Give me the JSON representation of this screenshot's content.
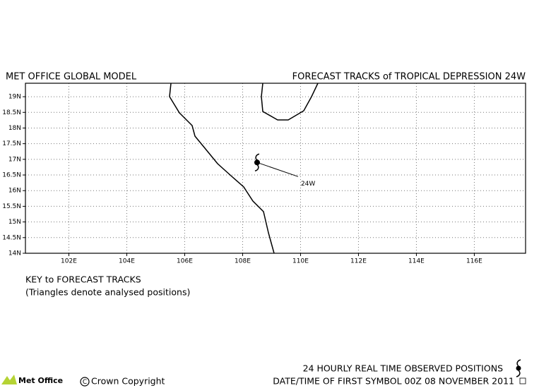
{
  "map": {
    "title_left": "MET OFFICE GLOBAL MODEL",
    "title_right": "FORECAST TRACKS of TROPICAL DEPRESSION 24W",
    "lon_range": [
      100.5,
      117.77
    ],
    "lat_range": [
      14,
      19.43
    ],
    "lon_ticks": [
      {
        "value": 102,
        "label": "102E"
      },
      {
        "value": 104,
        "label": "104E"
      },
      {
        "value": 106,
        "label": "106E"
      },
      {
        "value": 108,
        "label": "108E"
      },
      {
        "value": 110,
        "label": "110E"
      },
      {
        "value": 112,
        "label": "112E"
      },
      {
        "value": 114,
        "label": "114E"
      },
      {
        "value": 116,
        "label": "116E"
      }
    ],
    "lat_ticks": [
      {
        "value": 14,
        "label": "14N"
      },
      {
        "value": 14.5,
        "label": "14.5N"
      },
      {
        "value": 15,
        "label": "15N"
      },
      {
        "value": 15.5,
        "label": "15.5N"
      },
      {
        "value": 16,
        "label": "16N"
      },
      {
        "value": 16.5,
        "label": "16.5N"
      },
      {
        "value": 17,
        "label": "17N"
      },
      {
        "value": 17.5,
        "label": "17.5N"
      },
      {
        "value": 18,
        "label": "18N"
      },
      {
        "value": 18.5,
        "label": "18.5N"
      },
      {
        "value": 19,
        "label": "19N"
      }
    ],
    "storm": {
      "name": "24W",
      "lon": 108.5,
      "lat": 16.9
    },
    "key_title": "KEY to FORECAST TRACKS",
    "key_note": "(Triangles denote analysed positions)"
  },
  "footer": {
    "logo": "Met Office",
    "copyright": "Crown Copyright",
    "observed": "24 HOURLY REAL TIME OBSERVED POSITIONS",
    "first_symbol": "DATE/TIME OF FIRST SYMBOL 00Z 08 NOVEMBER 2011"
  }
}
